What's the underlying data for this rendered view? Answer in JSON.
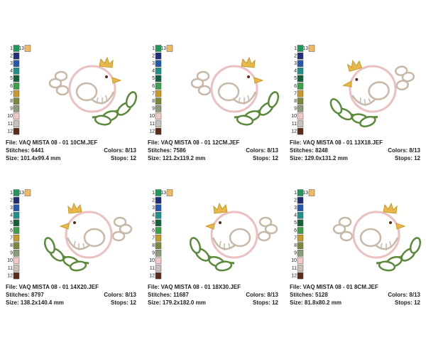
{
  "palette": [
    {
      "label": "1",
      "color": "#1e9a5a"
    },
    {
      "label": "2",
      "color": "#1c2e7a"
    },
    {
      "label": "3",
      "color": "#2456b0"
    },
    {
      "label": "4",
      "color": "#1f8f8a"
    },
    {
      "label": "5",
      "color": "#12603a"
    },
    {
      "label": "6",
      "color": "#3aa04a"
    },
    {
      "label": "7",
      "color": "#c89a2a"
    },
    {
      "label": "8",
      "color": "#7a8a3a"
    },
    {
      "label": "9",
      "color": "#8a9a7a"
    },
    {
      "label": "10",
      "color": "#f0c8c8"
    },
    {
      "label": "11",
      "color": "#c8c0b8"
    },
    {
      "label": "12",
      "color": "#5a2a1a"
    },
    {
      "label": "13",
      "color": "#f0b860"
    }
  ],
  "designs": [
    {
      "file": "File: VAQ MISTA 08 - 01 10CM.JEF",
      "stitches": "Stitches: 6441",
      "colors": "Colors: 8/13",
      "size": "Size: 101.4x99.4 mm",
      "stops": "Stops: 12"
    },
    {
      "file": "File: VAQ MISTA 08 - 01 12CM.JEF",
      "stitches": "Stitches: 7586",
      "colors": "Colors: 8/13",
      "size": "Size: 121.2x119.2 mm",
      "stops": "Stops: 12"
    },
    {
      "file": "File: VAQ MISTA 08 - 01 13X18.JEF",
      "stitches": "Stitches: 8248",
      "colors": "Colors: 8/13",
      "size": "Size: 129.0x131.2 mm",
      "stops": "Stops: 12"
    },
    {
      "file": "File: VAQ MISTA 08 - 01 14X20.JEF",
      "stitches": "Stitches: 8797",
      "colors": "Colors: 8/13",
      "size": "Size: 138.2x140.4 mm",
      "stops": "Stops: 12"
    },
    {
      "file": "File: VAQ MISTA 08 - 01 18X30.JEF",
      "stitches": "Stitches: 11687",
      "colors": "Colors: 8/13",
      "size": "Size: 179.2x182.0 mm",
      "stops": "Stops: 12"
    },
    {
      "file": "File: VAQ MISTA 08 - 01 8CM.JEF",
      "stitches": "Stitches: 5128",
      "colors": "Colors: 8/13",
      "size": "Size: 81.8x80.2 mm",
      "stops": "Stops: 12"
    }
  ]
}
